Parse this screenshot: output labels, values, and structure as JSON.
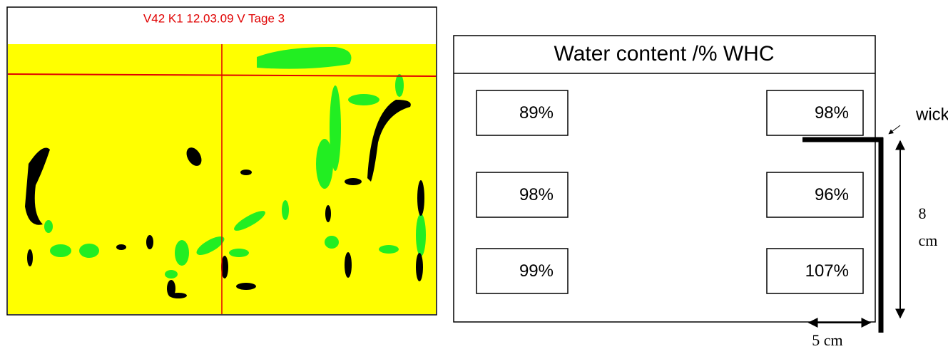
{
  "image": {
    "caption": "V42  K1 12.03.09 V Tage 3"
  },
  "diagram": {
    "title": "Water content /% WHC",
    "cells": [
      [
        "89%",
        "98%"
      ],
      [
        "98%",
        "96%"
      ],
      [
        "99%",
        "107%"
      ]
    ],
    "wick_label": "wick",
    "height_value": "8",
    "height_unit": "cm",
    "width_label": "5 cm"
  }
}
